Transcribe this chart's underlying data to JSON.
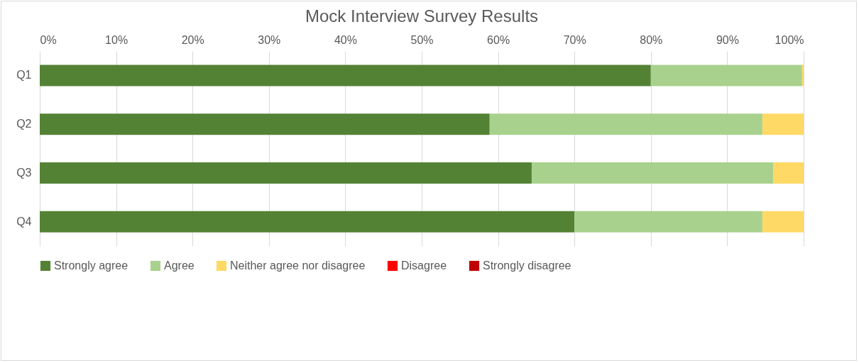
{
  "chart_data": {
    "type": "bar",
    "orientation": "horizontal",
    "stacked": true,
    "title": "Mock Interview Survey Results",
    "categories": [
      "Q1",
      "Q2",
      "Q3",
      "Q4"
    ],
    "series": [
      {
        "name": "Strongly agree",
        "color": "#548235",
        "values": [
          80,
          58.9,
          64.4,
          70
        ]
      },
      {
        "name": "Agree",
        "color": "#a9d18e",
        "values": [
          19.8,
          35.7,
          31.6,
          24.6
        ]
      },
      {
        "name": "Neither agree nor disagree",
        "color": "#ffd966",
        "values": [
          0.2,
          5.4,
          4,
          5.4
        ]
      },
      {
        "name": "Disagree",
        "color": "#ff0000",
        "values": [
          0,
          0,
          0,
          0
        ]
      },
      {
        "name": "Strongly disagree",
        "color": "#c00000",
        "values": [
          0,
          0,
          0,
          0
        ]
      }
    ],
    "xlim": [
      0,
      100
    ],
    "xticks": [
      {
        "value": 0,
        "label": "0%"
      },
      {
        "value": 10,
        "label": "10%"
      },
      {
        "value": 20,
        "label": "20%"
      },
      {
        "value": 30,
        "label": "30%"
      },
      {
        "value": 40,
        "label": "40%"
      },
      {
        "value": 50,
        "label": "50%"
      },
      {
        "value": 60,
        "label": "60%"
      },
      {
        "value": 70,
        "label": "70%"
      },
      {
        "value": 80,
        "label": "80%"
      },
      {
        "value": 90,
        "label": "90%"
      },
      {
        "value": 100,
        "label": "100%"
      }
    ],
    "grid": true,
    "legend": "bottom"
  }
}
